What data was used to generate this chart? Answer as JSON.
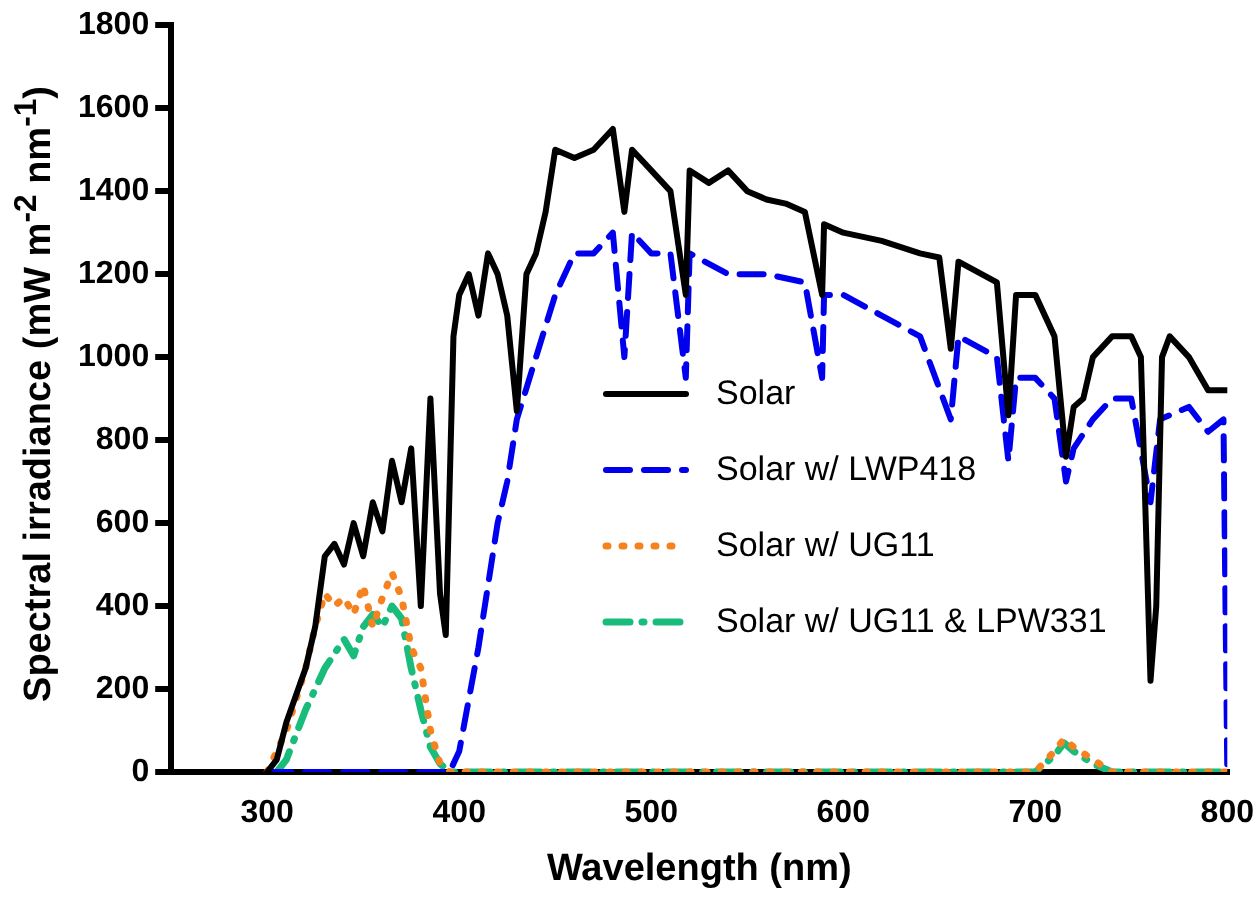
{
  "chart_data": {
    "type": "line",
    "xlabel": "Wavelength (nm)",
    "ylabel": "Spectral irradiance  (mW m$^{-2}$ nm$^{-1}$)",
    "xlim": [
      250,
      800
    ],
    "xticks": [
      300,
      400,
      500,
      600,
      700,
      800
    ],
    "ylim": [
      0,
      1800
    ],
    "yticks": [
      0,
      200,
      400,
      600,
      800,
      1000,
      1200,
      1400,
      1600,
      1800
    ],
    "grid": false,
    "legend": "right",
    "marker": "none",
    "series": [
      {
        "name": "Solar",
        "color": "#000000",
        "line_style": "solid",
        "x": [
          300,
          305,
          310,
          320,
          325,
          330,
          335,
          340,
          345,
          350,
          355,
          360,
          365,
          370,
          375,
          380,
          385,
          390,
          393,
          397,
          400,
          405,
          410,
          415,
          420,
          425,
          430,
          435,
          440,
          445,
          450,
          460,
          470,
          480,
          486,
          490,
          500,
          510,
          518,
          520,
          530,
          540,
          550,
          560,
          570,
          580,
          589,
          590,
          600,
          620,
          640,
          650,
          656,
          660,
          680,
          686,
          690,
          700,
          710,
          716,
          720,
          725,
          730,
          740,
          750,
          755,
          760,
          763,
          766,
          770,
          780,
          790,
          800
        ],
        "values": [
          0,
          30,
          120,
          250,
          350,
          520,
          550,
          500,
          600,
          520,
          650,
          580,
          750,
          650,
          780,
          400,
          900,
          430,
          330,
          1050,
          1150,
          1200,
          1100,
          1250,
          1200,
          1100,
          870,
          1200,
          1250,
          1350,
          1500,
          1480,
          1500,
          1550,
          1350,
          1500,
          1450,
          1400,
          1150,
          1450,
          1420,
          1450,
          1400,
          1380,
          1370,
          1350,
          1150,
          1320,
          1300,
          1280,
          1250,
          1240,
          1020,
          1230,
          1180,
          860,
          1150,
          1150,
          1050,
          760,
          880,
          900,
          1000,
          1050,
          1050,
          1000,
          220,
          400,
          1000,
          1050,
          1000,
          920,
          920
        ]
      },
      {
        "name": "Solar w/ LWP418",
        "color": "#0000ee",
        "line_style": "dashed",
        "x": [
          300,
          395,
          400,
          410,
          420,
          425,
          430,
          440,
          450,
          460,
          470,
          480,
          486,
          490,
          500,
          510,
          518,
          520,
          540,
          560,
          580,
          589,
          590,
          600,
          620,
          640,
          656,
          660,
          680,
          686,
          690,
          700,
          710,
          716,
          720,
          730,
          740,
          750,
          760,
          765,
          780,
          790,
          798,
          800
        ],
        "values": [
          0,
          0,
          50,
          300,
          600,
          700,
          850,
          1000,
          1150,
          1250,
          1250,
          1300,
          1000,
          1300,
          1250,
          1250,
          950,
          1250,
          1200,
          1200,
          1180,
          950,
          1150,
          1150,
          1100,
          1050,
          850,
          1050,
          1000,
          750,
          950,
          950,
          900,
          700,
          780,
          850,
          900,
          900,
          650,
          850,
          880,
          820,
          850,
          0
        ]
      },
      {
        "name": "Solar w/ UG11",
        "color": "#f5821f",
        "line_style": "dotted",
        "x": [
          300,
          310,
          320,
          325,
          330,
          335,
          340,
          345,
          350,
          355,
          360,
          365,
          370,
          375,
          380,
          385,
          390,
          395,
          700,
          710,
          715,
          720,
          730,
          740,
          800
        ],
        "values": [
          0,
          100,
          250,
          350,
          430,
          400,
          420,
          380,
          450,
          350,
          420,
          480,
          420,
          300,
          250,
          100,
          20,
          0,
          0,
          50,
          80,
          60,
          30,
          0,
          0
        ]
      },
      {
        "name": "Solar w/ UG11 & LPW331",
        "color": "#1abc7c",
        "line_style": "dashdot",
        "x": [
          305,
          310,
          320,
          330,
          340,
          345,
          350,
          355,
          360,
          365,
          370,
          375,
          380,
          385,
          390,
          395,
          700,
          710,
          715,
          720,
          730,
          740,
          800
        ],
        "values": [
          0,
          30,
          150,
          250,
          320,
          280,
          350,
          380,
          350,
          400,
          370,
          250,
          150,
          60,
          20,
          0,
          0,
          40,
          70,
          50,
          20,
          0,
          0
        ]
      }
    ]
  }
}
